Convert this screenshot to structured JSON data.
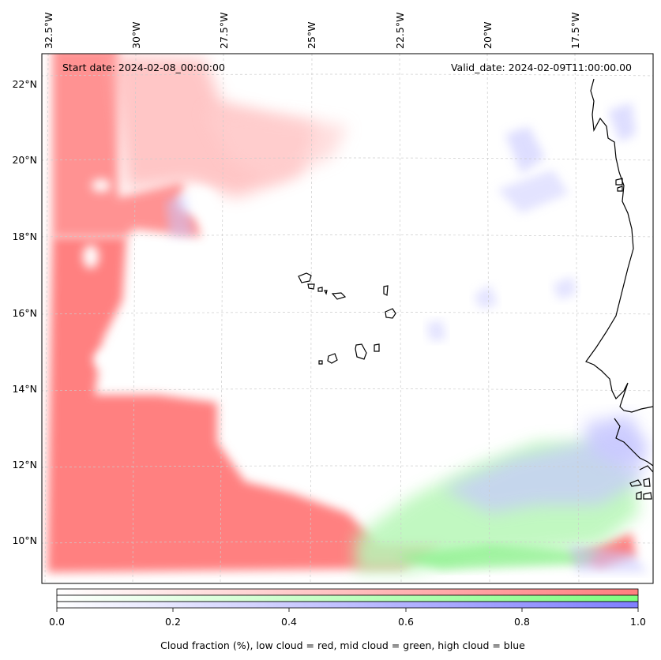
{
  "header": {
    "start_date": "Start date: 2024-02-08_00:00:00",
    "valid_date": "Valid_date: 2024-02-09T11:00:00.00"
  },
  "axes": {
    "lon_labels": [
      "32.5°W",
      "30°W",
      "27.5°W",
      "25°W",
      "22.5°W",
      "20°W",
      "17.5°W"
    ],
    "lat_labels": [
      "22°N",
      "20°N",
      "18°N",
      "16°N",
      "14°N",
      "12°N",
      "10°N"
    ]
  },
  "colorbar": {
    "ticks": [
      "0.0",
      "0.2",
      "0.4",
      "0.6",
      "0.8",
      "1.0"
    ],
    "label": "Cloud fraction (%), low cloud = red, mid cloud = green, high cloud = blue",
    "colors": {
      "low": "#ff7f7f",
      "mid": "#7fff7f",
      "high": "#7f7fff"
    }
  }
}
